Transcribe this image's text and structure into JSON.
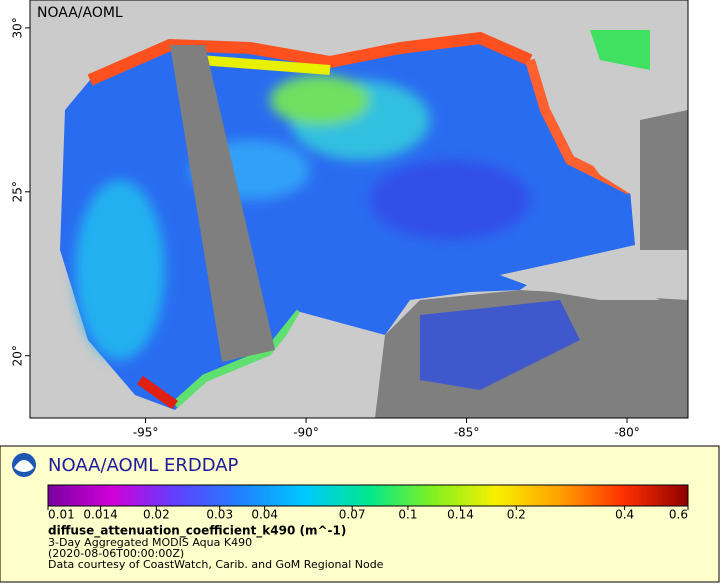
{
  "map": {
    "title": "NOAA/AOML",
    "xlim": [
      -98.6,
      -78.1
    ],
    "ylim": [
      18.1,
      30.85
    ],
    "xticks": [
      {
        "value": -95,
        "label": "-95°"
      },
      {
        "value": -90,
        "label": "-90°"
      },
      {
        "value": -85,
        "label": "-85°"
      },
      {
        "value": -80,
        "label": "-80°"
      }
    ],
    "yticks": [
      {
        "value": 20,
        "label": "20°"
      },
      {
        "value": 25,
        "label": "25°"
      },
      {
        "value": 30,
        "label": "30°"
      }
    ]
  },
  "legend": {
    "logo_title": "NOAA/AOML ERDDAP",
    "colorbar": {
      "lim": [
        0.01,
        0.6
      ],
      "log_scale": true,
      "ticks": [
        0.01,
        0.014,
        0.02,
        0.03,
        0.04,
        0.07,
        0.1,
        0.14,
        0.2,
        0.4,
        0.6
      ],
      "colors": [
        "#7a00a0",
        "#d000d8",
        "#6040ff",
        "#2080ff",
        "#00c8ff",
        "#00e890",
        "#80f020",
        "#f8f000",
        "#ffa000",
        "#ff3000",
        "#900000"
      ]
    },
    "variable": "diffuse_attenuation_coefficient_k490 (m^-1)",
    "lines": [
      "3-Day Aggregated MODIS Aqua K490",
      "(2020-08-06T00:00:00Z)",
      "Data courtesy of CoastWatch, Carib. and GoM Regional Node"
    ]
  }
}
